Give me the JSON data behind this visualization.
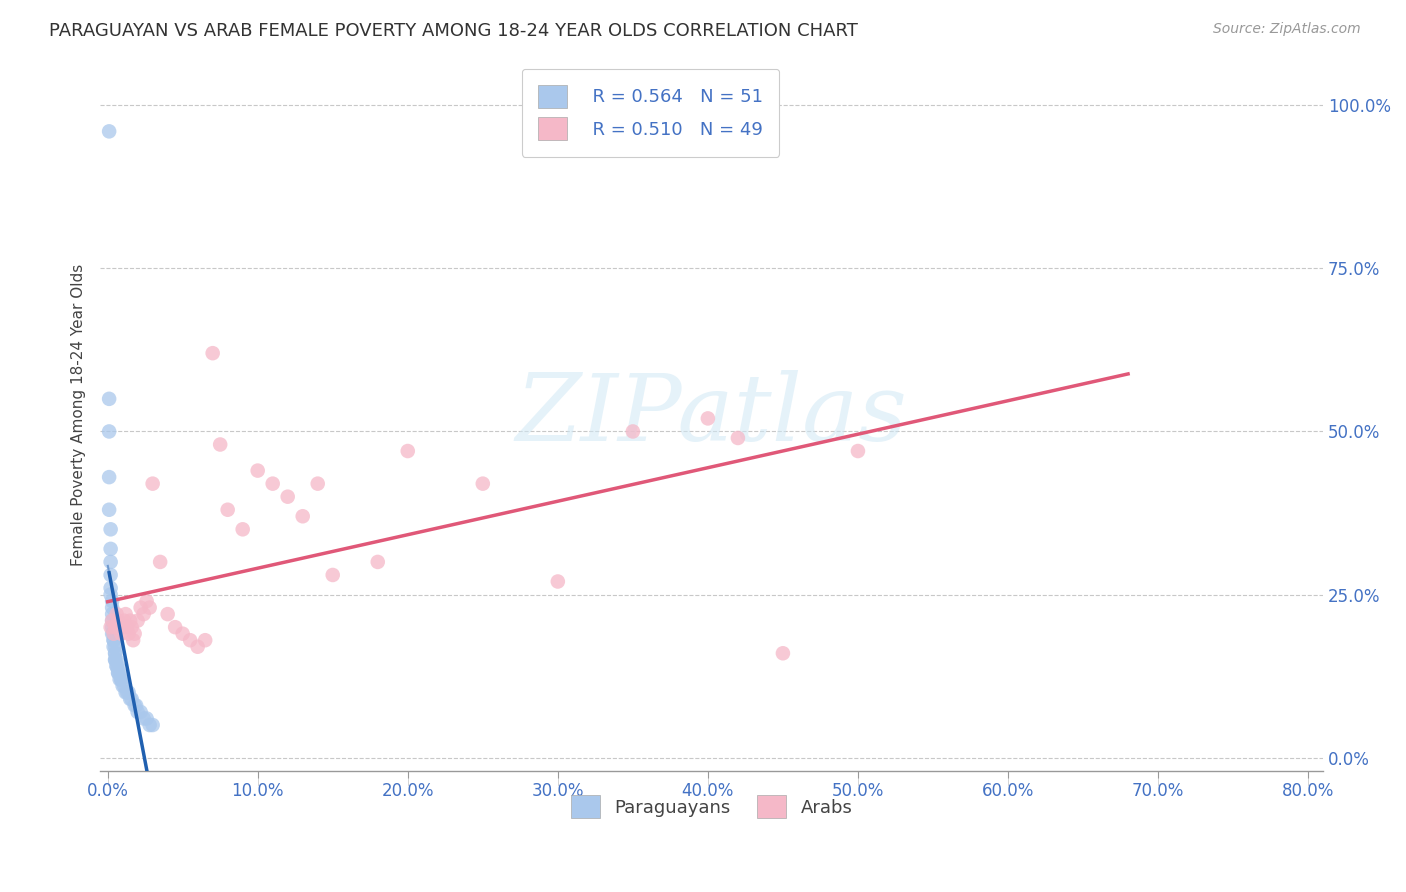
{
  "title": "PARAGUAYAN VS ARAB FEMALE POVERTY AMONG 18-24 YEAR OLDS CORRELATION CHART",
  "source": "Source: ZipAtlas.com",
  "ylabel": "Female Poverty Among 18-24 Year Olds",
  "xlim": [
    -0.005,
    0.81
  ],
  "ylim": [
    -0.02,
    1.07
  ],
  "xtick_positions": [
    0.0,
    0.1,
    0.2,
    0.3,
    0.4,
    0.5,
    0.6,
    0.7,
    0.8
  ],
  "xtick_labels": [
    "0.0%",
    "10.0%",
    "20.0%",
    "30.0%",
    "40.0%",
    "50.0%",
    "60.0%",
    "70.0%",
    "80.0%"
  ],
  "ytick_positions": [
    0.0,
    0.25,
    0.5,
    0.75,
    1.0
  ],
  "ytick_labels": [
    "0.0%",
    "25.0%",
    "50.0%",
    "75.0%",
    "100.0%"
  ],
  "paraguayan_color": "#aac8ec",
  "arab_color": "#f5b8c8",
  "trendline_par_color": "#2060b0",
  "trendline_arab_color": "#e05878",
  "background_color": "#ffffff",
  "grid_color": "#c8c8c8",
  "legend_R_par": "0.564",
  "legend_N_par": "51",
  "legend_R_arab": "0.510",
  "legend_N_arab": "49",
  "par_x": [
    0.001,
    0.001,
    0.001,
    0.001,
    0.001,
    0.002,
    0.002,
    0.002,
    0.002,
    0.002,
    0.002,
    0.003,
    0.003,
    0.003,
    0.003,
    0.003,
    0.003,
    0.004,
    0.004,
    0.004,
    0.004,
    0.005,
    0.005,
    0.005,
    0.005,
    0.005,
    0.006,
    0.006,
    0.006,
    0.007,
    0.007,
    0.007,
    0.008,
    0.008,
    0.009,
    0.009,
    0.01,
    0.011,
    0.012,
    0.013,
    0.014,
    0.015,
    0.016,
    0.018,
    0.019,
    0.02,
    0.022,
    0.024,
    0.026,
    0.028,
    0.03
  ],
  "par_y": [
    0.96,
    0.55,
    0.5,
    0.43,
    0.38,
    0.35,
    0.32,
    0.3,
    0.28,
    0.26,
    0.25,
    0.24,
    0.23,
    0.22,
    0.21,
    0.2,
    0.19,
    0.19,
    0.18,
    0.18,
    0.17,
    0.17,
    0.16,
    0.16,
    0.15,
    0.15,
    0.15,
    0.14,
    0.14,
    0.14,
    0.13,
    0.13,
    0.13,
    0.12,
    0.12,
    0.12,
    0.11,
    0.11,
    0.1,
    0.1,
    0.1,
    0.09,
    0.09,
    0.08,
    0.08,
    0.07,
    0.07,
    0.06,
    0.06,
    0.05,
    0.05
  ],
  "arab_x": [
    0.002,
    0.003,
    0.004,
    0.005,
    0.006,
    0.007,
    0.008,
    0.009,
    0.01,
    0.011,
    0.012,
    0.013,
    0.014,
    0.015,
    0.016,
    0.017,
    0.018,
    0.02,
    0.022,
    0.024,
    0.026,
    0.028,
    0.03,
    0.035,
    0.04,
    0.045,
    0.05,
    0.055,
    0.06,
    0.065,
    0.07,
    0.075,
    0.08,
    0.09,
    0.1,
    0.11,
    0.12,
    0.13,
    0.14,
    0.15,
    0.18,
    0.2,
    0.25,
    0.3,
    0.35,
    0.42,
    0.45,
    0.5,
    0.4
  ],
  "arab_y": [
    0.2,
    0.21,
    0.19,
    0.2,
    0.22,
    0.21,
    0.2,
    0.19,
    0.2,
    0.21,
    0.22,
    0.2,
    0.19,
    0.21,
    0.2,
    0.18,
    0.19,
    0.21,
    0.23,
    0.22,
    0.24,
    0.23,
    0.42,
    0.3,
    0.22,
    0.2,
    0.19,
    0.18,
    0.17,
    0.18,
    0.62,
    0.48,
    0.38,
    0.35,
    0.44,
    0.42,
    0.4,
    0.37,
    0.42,
    0.28,
    0.3,
    0.47,
    0.42,
    0.27,
    0.5,
    0.49,
    0.16,
    0.47,
    0.52
  ],
  "par_trendline_x_start": 0.0,
  "par_trendline_x_end": 0.03,
  "par_trendline_dash_x_end": 0.016,
  "arab_trendline_x_start": 0.0,
  "arab_trendline_x_end": 0.68,
  "watermark_text": "ZIPatlas",
  "watermark_color": "#d0e8f5",
  "title_fontsize": 13,
  "source_fontsize": 10,
  "tick_fontsize": 12,
  "legend_fontsize": 13,
  "ylabel_fontsize": 11,
  "marker_size": 110,
  "marker_alpha": 0.75,
  "trendline_lw": 2.5
}
